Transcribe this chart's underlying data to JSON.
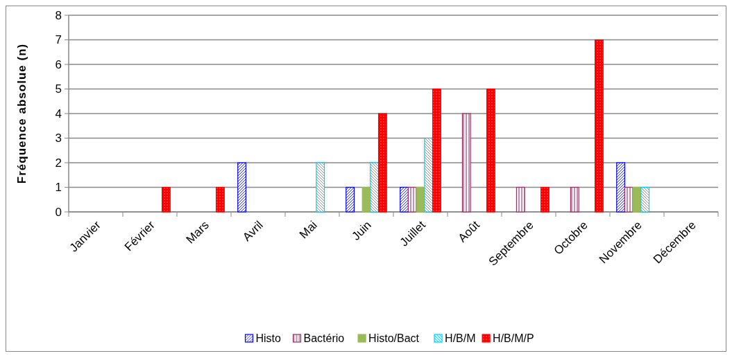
{
  "chart_data": {
    "type": "bar",
    "ylabel": "Fréquence absolue (n)",
    "categories": [
      "Janvier",
      "Février",
      "Mars",
      "Avril",
      "Mai",
      "Juin",
      "Juillet",
      "Août",
      "Septembre",
      "Octobre",
      "Novembre",
      "Décembre"
    ],
    "series": [
      {
        "name": "Histo",
        "color": "#0000ff",
        "values": [
          0,
          0,
          0,
          2,
          0,
          1,
          1,
          0,
          0,
          0,
          2,
          0
        ]
      },
      {
        "name": "Bactério",
        "color": "#993366",
        "values": [
          0,
          0,
          0,
          0,
          0,
          0,
          1,
          4,
          1,
          1,
          1,
          0
        ]
      },
      {
        "name": "Histo/Bact",
        "color": "#9bbb59",
        "values": [
          0,
          0,
          0,
          0,
          0,
          1,
          1,
          0,
          0,
          0,
          1,
          0
        ]
      },
      {
        "name": "H/B/M",
        "color": "#00ccff",
        "values": [
          0,
          0,
          0,
          0,
          2,
          2,
          3,
          0,
          0,
          0,
          1,
          0
        ]
      },
      {
        "name": "H/B/M/P",
        "color": "#ff0000",
        "values": [
          0,
          1,
          1,
          0,
          0,
          4,
          5,
          5,
          1,
          7,
          0,
          0
        ]
      }
    ],
    "ylim": [
      0,
      8
    ],
    "yticks": [
      0,
      1,
      2,
      3,
      4,
      5,
      6,
      7,
      8
    ],
    "grid": "y",
    "legend": "bottom"
  }
}
